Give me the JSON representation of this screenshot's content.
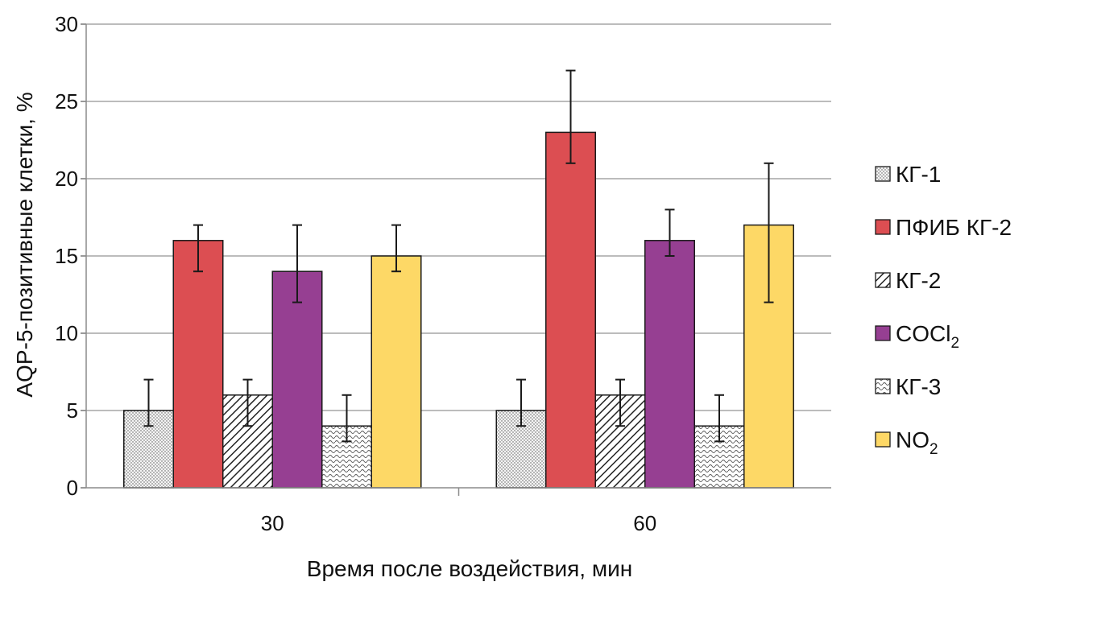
{
  "chart_data": {
    "type": "bar",
    "title": "",
    "xlabel": "Время после воздействия, мин",
    "ylabel": "AQP-5-позитивные клетки, %",
    "ylim": [
      0,
      30
    ],
    "yticks": [
      0,
      5,
      10,
      15,
      20,
      25,
      30
    ],
    "grid": true,
    "legend_position": "right",
    "categories": [
      "30",
      "60"
    ],
    "series": [
      {
        "name": "КГ-1",
        "label_main": "КГ-1",
        "label_sub": "",
        "values": [
          5,
          5
        ],
        "err_low": [
          4,
          4
        ],
        "err_high": [
          7,
          7
        ],
        "color": "#f2f2f2",
        "pattern": "dots"
      },
      {
        "name": "ПФИБ КГ-2",
        "label_main": "ПФИБ КГ-2",
        "label_sub": "",
        "values": [
          16,
          23
        ],
        "err_low": [
          14,
          21
        ],
        "err_high": [
          17,
          27
        ],
        "color": "#dc4e52",
        "pattern": "solid"
      },
      {
        "name": "КГ-2",
        "label_main": "КГ-2",
        "label_sub": "",
        "values": [
          6,
          6
        ],
        "err_low": [
          4,
          4
        ],
        "err_high": [
          7,
          7
        ],
        "color": "#ffffff",
        "pattern": "diag"
      },
      {
        "name": "COCl2",
        "label_main": "COCl",
        "label_sub": "2",
        "values": [
          14,
          16
        ],
        "err_low": [
          12,
          15
        ],
        "err_high": [
          17,
          18
        ],
        "color": "#963f92",
        "pattern": "solid"
      },
      {
        "name": "КГ-3",
        "label_main": "КГ-3",
        "label_sub": "",
        "values": [
          4,
          4
        ],
        "err_low": [
          3,
          3
        ],
        "err_high": [
          6,
          6
        ],
        "color": "#ffffff",
        "pattern": "wave"
      },
      {
        "name": "NO2",
        "label_main": "NO",
        "label_sub": "2",
        "values": [
          15,
          17
        ],
        "err_low": [
          14,
          12
        ],
        "err_high": [
          17,
          21
        ],
        "color": "#fdd866",
        "pattern": "solid"
      }
    ]
  }
}
